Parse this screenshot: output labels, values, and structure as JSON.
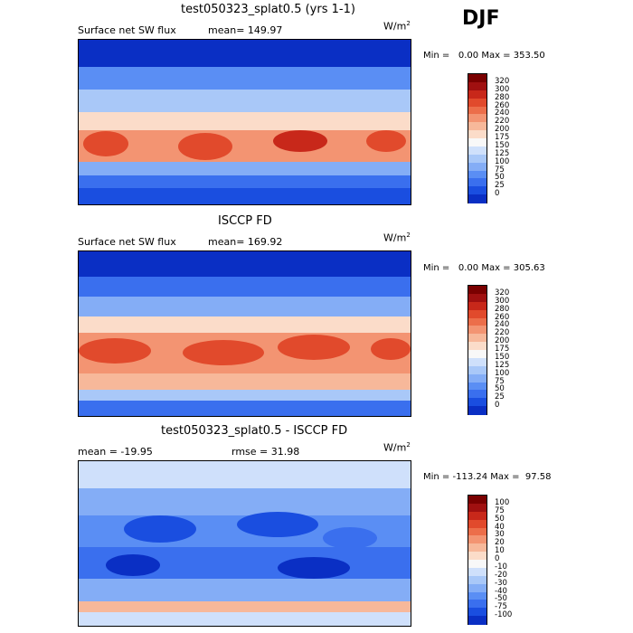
{
  "season": "DJF",
  "colors": {
    "abs_scale": [
      "#001a8c",
      "#0a2fc4",
      "#1a4ee0",
      "#3a6fee",
      "#5a8ef4",
      "#84adf6",
      "#a9c8f8",
      "#cfe0fb",
      "#f8f8f8",
      "#fbdcc9",
      "#f7b89a",
      "#f39472",
      "#ec6e4a",
      "#e14a2c",
      "#c8281a",
      "#a01010",
      "#7a0000"
    ],
    "diff_scale": [
      "#001a8c",
      "#0a2fc4",
      "#1a4ee0",
      "#3a6fee",
      "#5a8ef4",
      "#84adf6",
      "#a9c8f8",
      "#cfe0fb",
      "#f8f8f8",
      "#fbdcc9",
      "#f7b89a",
      "#f39472",
      "#ec6e4a",
      "#e14a2c",
      "#c8281a",
      "#a01010",
      "#7a0000"
    ]
  },
  "chart_data": [
    {
      "type": "heatmap",
      "title": "test050323_splat0.5 (yrs 1-1)",
      "variable": "Surface net SW flux",
      "stat_label": "mean=",
      "stat_value": "149.97",
      "units": "W/m",
      "units_exp": "2",
      "min_label": "Min =",
      "min_value": "0.00",
      "max_label": "Max =",
      "max_value": "353.50",
      "levels": [
        "320",
        "300",
        "280",
        "260",
        "240",
        "220",
        "200",
        "175",
        "150",
        "125",
        "100",
        "75",
        "50",
        "25",
        "0"
      ]
    },
    {
      "type": "heatmap",
      "title": "ISCCP FD",
      "variable": "Surface net SW flux",
      "stat_label": "mean=",
      "stat_value": "169.92",
      "units": "W/m",
      "units_exp": "2",
      "min_label": "Min =",
      "min_value": "0.00",
      "max_label": "Max =",
      "max_value": "305.63",
      "levels": [
        "320",
        "300",
        "280",
        "260",
        "240",
        "220",
        "200",
        "175",
        "150",
        "125",
        "100",
        "75",
        "50",
        "25",
        "0"
      ]
    },
    {
      "type": "heatmap",
      "title": "test050323_splat0.5 - ISCCP FD",
      "mean_label": "mean =",
      "mean_value": "-19.95",
      "rmse_label": "rmse =",
      "rmse_value": "31.98",
      "units": "W/m",
      "units_exp": "2",
      "min_label": "Min =",
      "min_value": "-113.24",
      "max_label": "Max =",
      "max_value": "97.58",
      "levels": [
        "100",
        "75",
        "50",
        "40",
        "30",
        "20",
        "10",
        "0",
        "-10",
        "-20",
        "-30",
        "-40",
        "-50",
        "-75",
        "-100"
      ]
    }
  ]
}
